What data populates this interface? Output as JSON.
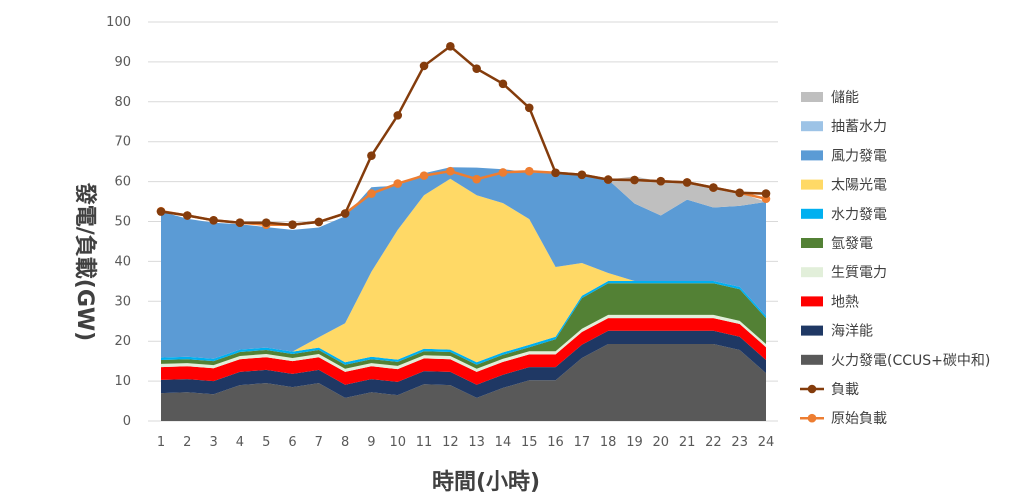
{
  "chart_data": {
    "type": "area",
    "xlabel": "時間(小時)",
    "ylabel": "發電/負載(GW)",
    "ylim": [
      0,
      100
    ],
    "ytick_step": 10,
    "grid": "horizontal",
    "legend_position": "right",
    "x": [
      1,
      2,
      3,
      4,
      5,
      6,
      7,
      8,
      9,
      10,
      11,
      12,
      13,
      14,
      15,
      16,
      17,
      18,
      19,
      20,
      21,
      22,
      23,
      24
    ],
    "stacked_series": [
      {
        "name": "火力發電(CCUS+碳中和)",
        "color": "#595959",
        "values": [
          7,
          7.2,
          6.7,
          9,
          9.5,
          8.5,
          9.5,
          5.8,
          7.2,
          6.5,
          9.2,
          9,
          5.8,
          8.3,
          10.2,
          10.2,
          15.8,
          19.3,
          19.3,
          19.3,
          19.3,
          19.3,
          17.8,
          12
        ]
      },
      {
        "name": "海洋能",
        "color": "#1f3864",
        "values": [
          3.3,
          3.3,
          3.3,
          3.3,
          3.3,
          3.3,
          3.3,
          3.3,
          3.3,
          3.3,
          3.3,
          3.3,
          3.3,
          3.3,
          3.3,
          3.3,
          3.3,
          3.3,
          3.3,
          3.3,
          3.3,
          3.3,
          3.3,
          3.3
        ]
      },
      {
        "name": "地熱",
        "color": "#ff0000",
        "values": [
          3.2,
          3.2,
          3.2,
          3.2,
          3.2,
          3.2,
          3.2,
          3.2,
          3.2,
          3.2,
          3.2,
          3.2,
          3.2,
          3.2,
          3.2,
          3.2,
          3.2,
          3.2,
          3.2,
          3.2,
          3.2,
          3.2,
          3.2,
          3.2
        ]
      },
      {
        "name": "生質電力",
        "color": "#e2efda",
        "values": [
          0.8,
          0.8,
          0.8,
          0.8,
          0.8,
          0.8,
          0.8,
          0.8,
          0.8,
          0.8,
          0.8,
          0.8,
          0.8,
          0.8,
          0.8,
          0.8,
          0.8,
          0.8,
          0.8,
          0.8,
          0.8,
          0.8,
          0.8,
          0.8
        ]
      },
      {
        "name": "氫發電",
        "color": "#538135",
        "values": [
          1,
          1,
          1,
          1,
          1,
          1,
          1,
          1,
          1,
          1,
          1,
          1,
          1,
          1,
          1,
          3,
          7.7,
          7.9,
          7.9,
          7.9,
          7.9,
          7.9,
          7.9,
          6.5
        ]
      },
      {
        "name": "水力發電",
        "color": "#00b0f0",
        "values": [
          0.6,
          0.6,
          0.6,
          0.6,
          0.6,
          0.6,
          0.6,
          0.6,
          0.6,
          0.6,
          0.6,
          0.6,
          0.6,
          0.6,
          0.6,
          0.6,
          0.6,
          0.6,
          0.6,
          0.6,
          0.6,
          0.6,
          0.6,
          0.6
        ]
      },
      {
        "name": "太陽光電",
        "color": "#ffd966",
        "values": [
          0,
          0,
          0,
          0,
          0,
          0,
          2.6,
          9.8,
          21.3,
          32.5,
          38.5,
          42.8,
          41.9,
          37.4,
          31.5,
          17.5,
          8.2,
          2,
          0,
          0,
          0,
          0,
          0,
          0
        ]
      },
      {
        "name": "風力發電",
        "color": "#5b9bd5",
        "values": [
          36.6,
          34.6,
          34.1,
          31.4,
          30.2,
          30.5,
          27.5,
          26.8,
          21.2,
          11.1,
          5.5,
          2.9,
          6.9,
          8.5,
          11.7,
          23.4,
          22.1,
          23.4,
          19.4,
          16.4,
          20.4,
          18.4,
          20.3,
          28.5
        ]
      },
      {
        "name": "抽蓄水力",
        "color": "#9dc3e6",
        "values": [
          0,
          0,
          0,
          0,
          0,
          0,
          0,
          0,
          0,
          0,
          0,
          0,
          0,
          0,
          0,
          0,
          0,
          0,
          0,
          0,
          0,
          0,
          0,
          0
        ]
      },
      {
        "name": "儲能",
        "color": "#bfbfbf",
        "values": [
          0,
          0,
          0,
          0,
          0,
          0,
          0,
          0,
          0,
          0,
          0,
          0,
          0,
          0,
          0,
          0,
          0,
          0,
          6.8,
          8.5,
          4.3,
          5.1,
          3.3,
          0
        ]
      }
    ],
    "line_series": [
      {
        "name": "負載",
        "color": "#843c0c",
        "marker": "circle",
        "values": [
          52.5,
          51.5,
          50.3,
          49.7,
          49.7,
          49.2,
          49.9,
          52,
          66.5,
          76.6,
          89,
          93.9,
          88.3,
          84.5,
          78.5,
          62.2,
          61.7,
          60.5,
          60.4,
          60.1,
          59.8,
          58.5,
          57.2,
          57
        ]
      },
      {
        "name": "原始負載",
        "color": "#ed7d31",
        "marker": "circle",
        "values": [
          52.6,
          51.5,
          50.3,
          49.7,
          49.2,
          49.2,
          49.9,
          52,
          57,
          59.5,
          61.5,
          62.6,
          60.6,
          62.3,
          62.6,
          62.2,
          61.7,
          60.5,
          60.4,
          60.1,
          59.8,
          58.5,
          57.2,
          55.7
        ]
      }
    ],
    "legend_order": [
      "儲能",
      "抽蓄水力",
      "風力發電",
      "太陽光電",
      "水力發電",
      "氫發電",
      "生質電力",
      "地熱",
      "海洋能",
      "火力發電(CCUS+碳中和)",
      "負載",
      "原始負載"
    ]
  }
}
